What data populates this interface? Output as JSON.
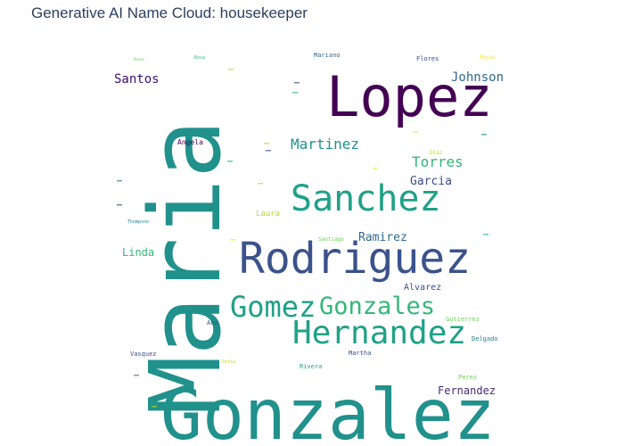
{
  "chart_data": {
    "type": "wordcloud",
    "title": "Generative AI Name Cloud: housekeeper",
    "words": [
      {
        "text": "Maria",
        "color": "#21918c"
      },
      {
        "text": "Gonzalez",
        "color": "#21918c"
      },
      {
        "text": "Lopez",
        "color": "#440154"
      },
      {
        "text": "Rodriguez",
        "color": "#3b528b"
      },
      {
        "text": "Sanchez",
        "color": "#1fa187"
      },
      {
        "text": "Hernandez",
        "color": "#1fa187"
      },
      {
        "text": "Gomez",
        "color": "#1fa187"
      },
      {
        "text": "Gonzales",
        "color": "#35b779"
      },
      {
        "text": "Martinez",
        "color": "#21918c"
      },
      {
        "text": "Torres",
        "color": "#35b779"
      },
      {
        "text": "Johnson",
        "color": "#31688e"
      },
      {
        "text": "Santos",
        "color": "#3b0f70"
      },
      {
        "text": "Garcia",
        "color": "#3e4a89"
      },
      {
        "text": "Ramirez",
        "color": "#31688e"
      },
      {
        "text": "Fernandez",
        "color": "#482878"
      },
      {
        "text": "Linda",
        "color": "#35b779"
      },
      {
        "text": "Alvarez",
        "color": "#3e4a89"
      },
      {
        "text": "Laura",
        "color": "#b5de2b"
      },
      {
        "text": "Angela",
        "color": "#440154"
      },
      {
        "text": "Mariano",
        "color": "#31688e"
      },
      {
        "text": "Flores",
        "color": "#3e4a89"
      },
      {
        "text": "Gutierrez",
        "color": "#6ece58"
      },
      {
        "text": "Delgado",
        "color": "#26828e"
      },
      {
        "text": "Martha",
        "color": "#3e4a89"
      },
      {
        "text": "Rivera",
        "color": "#1f9e89"
      },
      {
        "text": "Perez",
        "color": "#6ece58"
      },
      {
        "text": "Vasquez",
        "color": "#3e4a89"
      },
      {
        "text": "Sofia",
        "color": "#b5de2b"
      },
      {
        "text": "Ana",
        "color": "#3e4a89"
      },
      {
        "text": "Diaz",
        "color": "#b5de2b"
      },
      {
        "text": "Mayes",
        "color": "#fde725"
      },
      {
        "text": "Thompson",
        "color": "#26828e"
      },
      {
        "text": "Santiago",
        "color": "#6ece58"
      },
      {
        "text": "Rosa",
        "color": "#35b779"
      },
      {
        "text": "Reyes",
        "color": "#6ece58"
      }
    ]
  }
}
